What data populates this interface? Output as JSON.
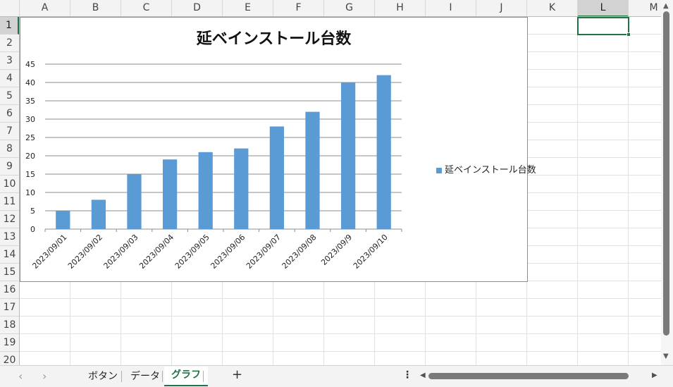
{
  "columns": [
    "A",
    "B",
    "C",
    "D",
    "E",
    "F",
    "G",
    "H",
    "I",
    "J",
    "K",
    "L",
    "M"
  ],
  "selected_column": "L",
  "rows": [
    "1",
    "2",
    "3",
    "4",
    "5",
    "6",
    "7",
    "8",
    "9",
    "10",
    "11",
    "12",
    "13",
    "14",
    "15",
    "16",
    "17",
    "18",
    "19",
    "20"
  ],
  "selected_row": "1",
  "chart_data": {
    "type": "bar",
    "title": "延ベインストール台数",
    "categories": [
      "2023/09/01",
      "2023/09/02",
      "2023/09/03",
      "2023/09/04",
      "2023/09/05",
      "2023/09/06",
      "2023/09/07",
      "2023/09/08",
      "2023/09/9",
      "2023/09/10"
    ],
    "series": [
      {
        "name": "延ベインストール台数",
        "values": [
          5,
          8,
          15,
          19,
          21,
          22,
          28,
          32,
          40,
          42
        ]
      }
    ],
    "y_ticks": [
      "0",
      "5",
      "10",
      "15",
      "20",
      "25",
      "30",
      "35",
      "40",
      "45"
    ],
    "ylim": [
      0,
      45
    ],
    "grid": true,
    "legend_position": "right",
    "bar_color": "#5b9bd5"
  },
  "sheet_tabs": {
    "nav_prev": "‹",
    "nav_next": "›",
    "tabs": [
      "ボタン",
      "データ",
      "グラフ"
    ],
    "active": "グラフ",
    "add": "+",
    "more": "⋮"
  },
  "colors": {
    "accent": "#217346"
  }
}
